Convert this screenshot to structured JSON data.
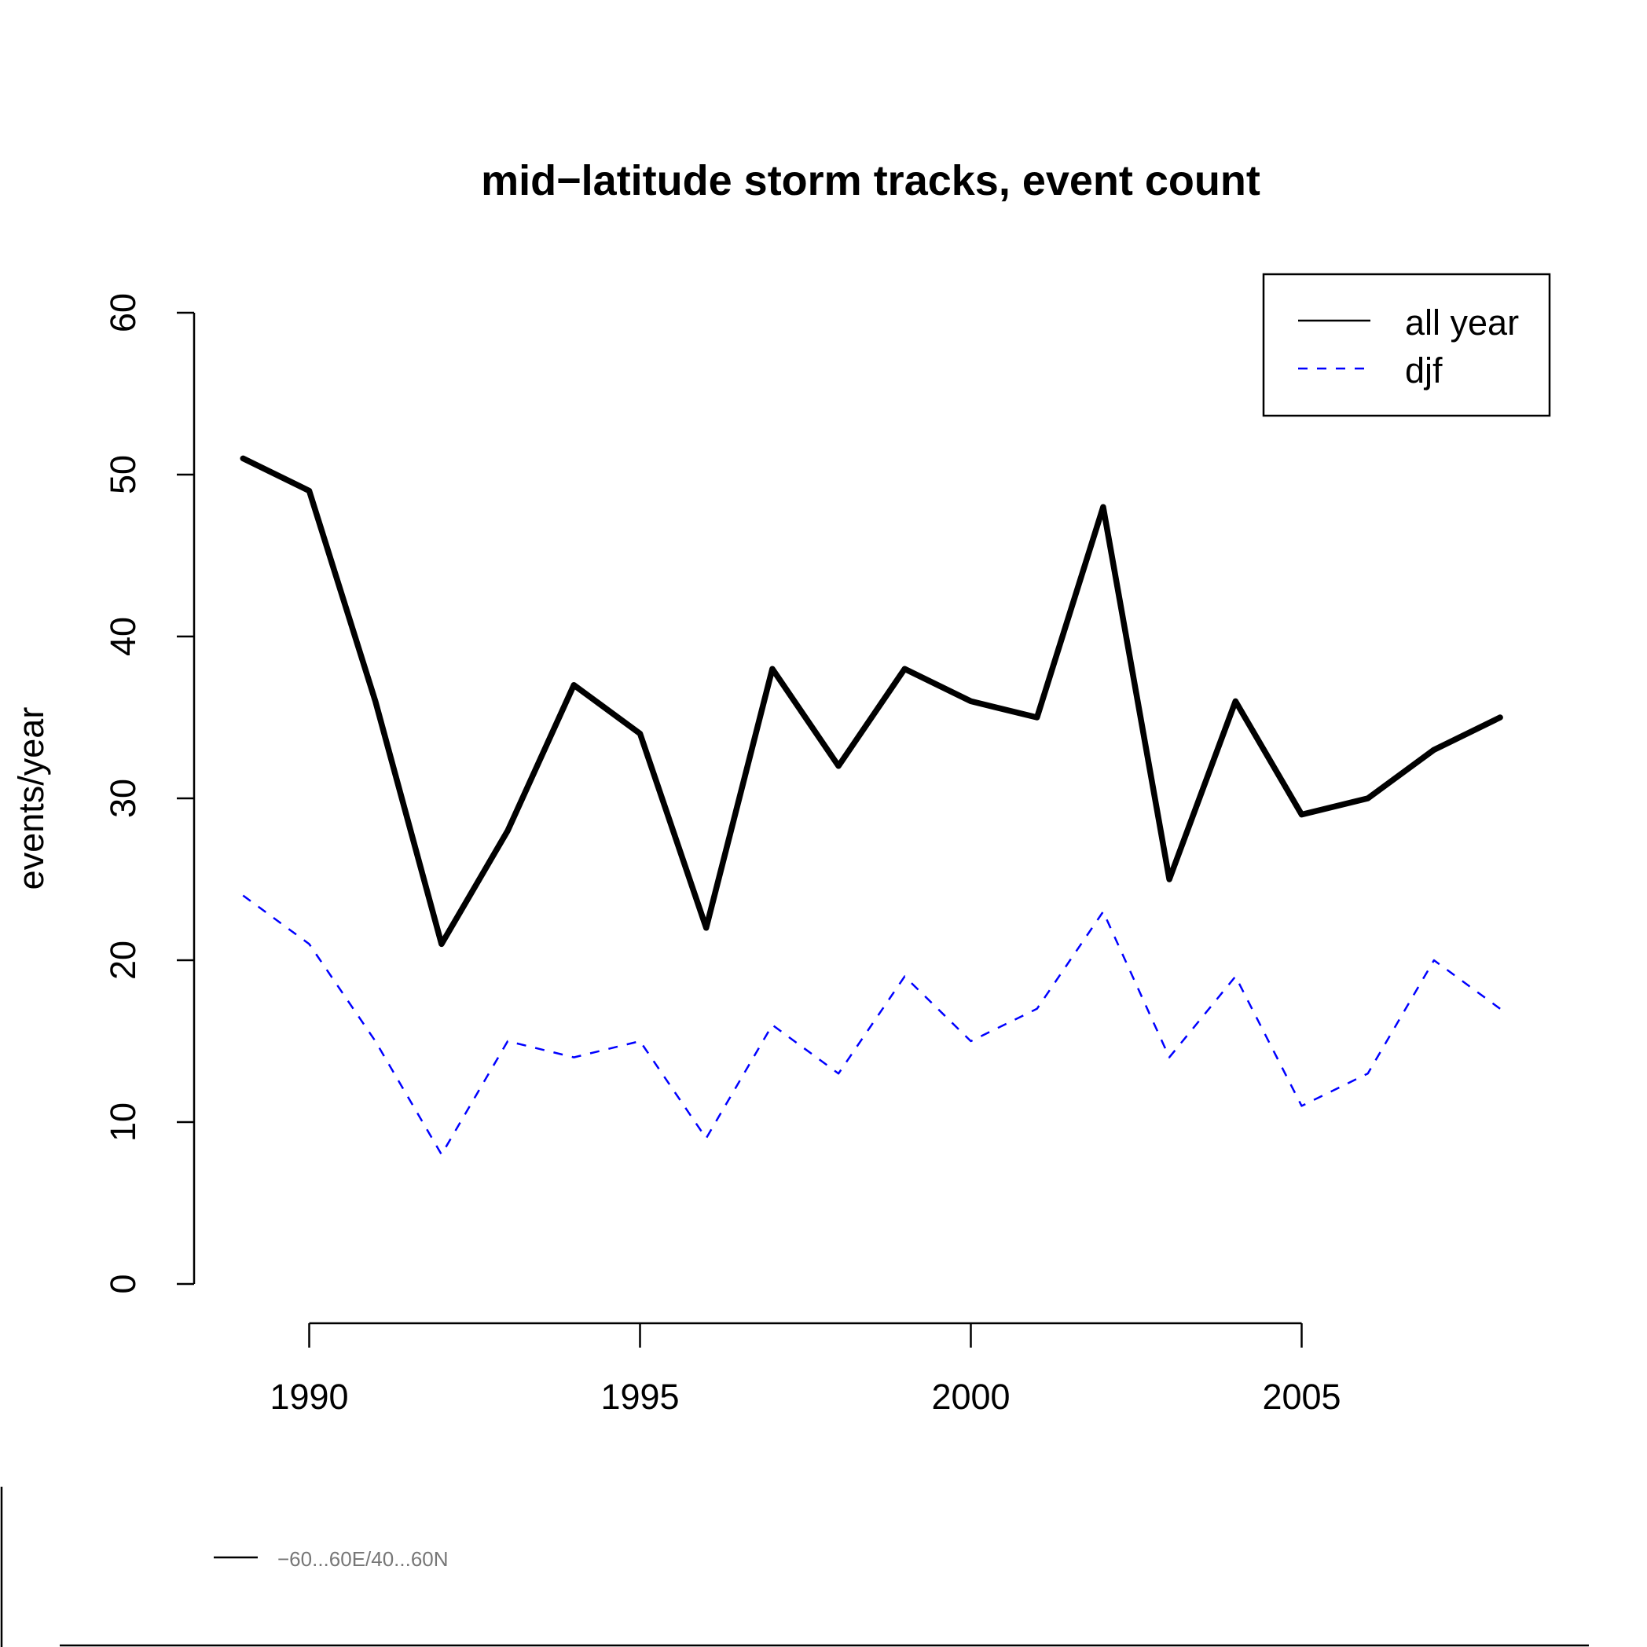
{
  "chart_data": {
    "type": "line",
    "title": "mid−latitude storm tracks, event count",
    "xlabel": "",
    "ylabel": "events/year",
    "xlim": [
      1988.2,
      2008.7
    ],
    "ylim": [
      0,
      60
    ],
    "x_ticks": [
      1990,
      1995,
      2000,
      2005
    ],
    "y_ticks": [
      0,
      10,
      20,
      30,
      40,
      50,
      60
    ],
    "x_tick_labels": [
      "1990",
      "1995",
      "2000",
      "2005"
    ],
    "y_tick_labels": [
      "0",
      "10",
      "20",
      "30",
      "40",
      "50",
      "60"
    ],
    "legend_position": "top-right",
    "x": [
      1989,
      1990,
      1991,
      1992,
      1993,
      1994,
      1995,
      1996,
      1997,
      1998,
      1999,
      2000,
      2001,
      2002,
      2003,
      2004,
      2005,
      2006,
      2007,
      2008
    ],
    "series": [
      {
        "name": "all year",
        "color": "#000000",
        "style": "solid",
        "values": [
          51,
          49,
          36,
          21,
          28,
          37,
          34,
          22,
          38,
          32,
          38,
          36,
          35,
          48,
          25,
          36,
          29,
          30,
          33,
          35
        ]
      },
      {
        "name": "djf",
        "color": "#0000ff",
        "style": "dashed",
        "values": [
          24,
          21,
          15,
          8,
          15,
          14,
          15,
          9,
          16,
          13,
          19,
          15,
          17,
          23,
          14,
          19,
          11,
          13,
          20,
          17
        ]
      }
    ],
    "footnote": {
      "label": "−60...60E/40...60N",
      "color": "#777777"
    }
  }
}
